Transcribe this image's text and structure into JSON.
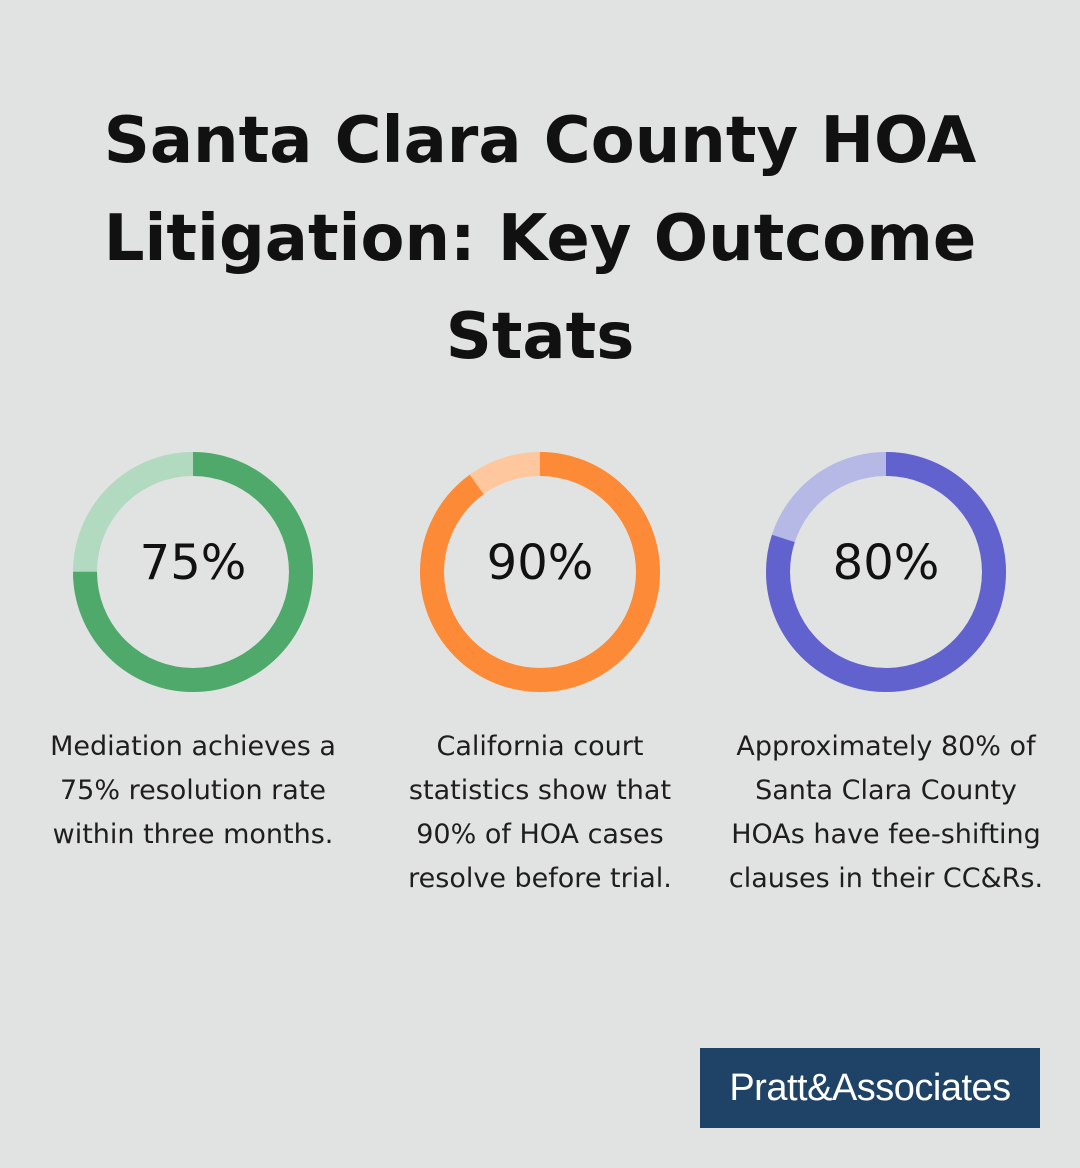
{
  "title": "Santa Clara County HOA Litigation: Key Outcome Stats",
  "chart_data": {
    "type": "pie",
    "series": [
      {
        "values": [
          75,
          25
        ],
        "label": "75%",
        "description": "Mediation achieves a 75% resolution rate within three months.",
        "color": "#4ea96b",
        "track_color": "#b1dac0"
      },
      {
        "values": [
          90,
          10
        ],
        "label": "90%",
        "description": "California court statistics show that 90% of HOA cases resolve before trial.",
        "color": "#fd8a36",
        "track_color": "#fec79d"
      },
      {
        "values": [
          80,
          20
        ],
        "label": "80%",
        "description": "Approximately 80% of Santa Clara County HOAs have fee-shifting clauses in their CC&Rs.",
        "color": "#6262cf",
        "track_color": "#b6b8e6"
      }
    ]
  },
  "logo": {
    "text": "Pratt&Associates"
  }
}
